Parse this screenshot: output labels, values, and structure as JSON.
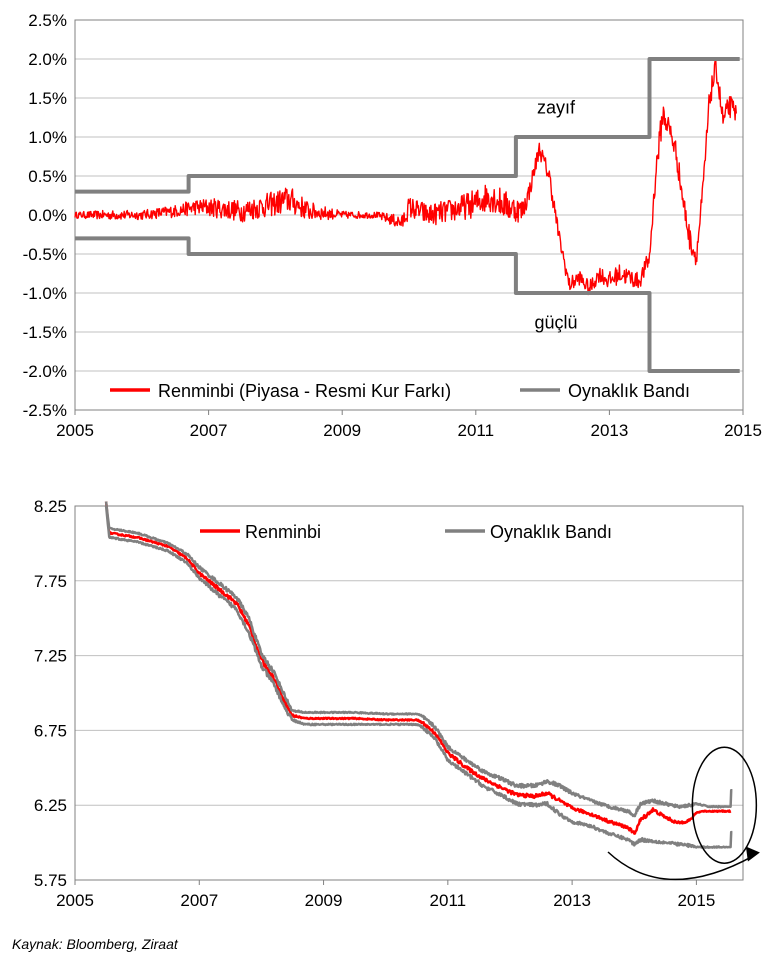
{
  "source": "Kaynak: Bloomberg, Ziraat",
  "chart_data": [
    {
      "type": "line",
      "title": "",
      "xlabel": "",
      "ylabel": "",
      "xlim": [
        2005,
        2015
      ],
      "ylim": [
        -2.5,
        2.5
      ],
      "x_ticks": [
        "2005",
        "2007",
        "2009",
        "2011",
        "2013",
        "2015"
      ],
      "y_ticks": [
        "2.5%",
        "2.0%",
        "1.5%",
        "1.0%",
        "0.5%",
        "0.0%",
        "-0.5%",
        "-1.0%",
        "-1.5%",
        "-2.0%",
        "-2.5%"
      ],
      "grid": true,
      "legend_position": "bottom",
      "annotations": [
        {
          "text": "zayıf",
          "x": 2012.2,
          "y": 1.2
        },
        {
          "text": "güçlü",
          "x": 2012.2,
          "y": -1.3
        }
      ],
      "series": [
        {
          "name": "Renminbi (Piyasa - Resmi Kur Farkı)",
          "color": "#ff0000",
          "style": "noisy",
          "x": [
            2005.0,
            2005.5,
            2006.0,
            2006.5,
            2006.8,
            2007.0,
            2007.5,
            2008.0,
            2008.2,
            2008.5,
            2009.0,
            2009.5,
            2009.9,
            2010.0,
            2010.3,
            2010.6,
            2011.0,
            2011.2,
            2011.5,
            2011.7,
            2011.8,
            2011.95,
            2012.1,
            2012.25,
            2012.4,
            2012.55,
            2012.7,
            2012.85,
            2013.0,
            2013.15,
            2013.3,
            2013.45,
            2013.6,
            2013.7,
            2013.8,
            2013.9,
            2014.0,
            2014.1,
            2014.2,
            2014.3,
            2014.4,
            2014.5,
            2014.6,
            2014.7,
            2014.8,
            2014.9
          ],
          "y": [
            0.0,
            0.0,
            0.0,
            0.05,
            0.1,
            0.1,
            0.05,
            0.15,
            0.2,
            0.05,
            0.0,
            0.0,
            -0.1,
            0.1,
            0.0,
            0.05,
            0.15,
            0.25,
            0.1,
            0.05,
            0.3,
            0.85,
            0.5,
            -0.3,
            -0.9,
            -0.8,
            -0.95,
            -0.75,
            -0.85,
            -0.75,
            -0.8,
            -0.85,
            -0.55,
            0.6,
            1.3,
            1.1,
            0.8,
            0.2,
            -0.3,
            -0.55,
            0.3,
            1.5,
            1.9,
            1.2,
            1.4,
            1.3
          ],
          "noise": [
            0.04,
            0.06,
            0.06,
            0.08,
            0.1,
            0.12,
            0.14,
            0.16,
            0.18,
            0.12,
            0.05,
            0.04,
            0.1,
            0.14,
            0.14,
            0.15,
            0.18,
            0.2,
            0.18,
            0.15,
            0.12,
            0.1,
            0.12,
            0.1,
            0.1,
            0.1,
            0.1,
            0.1,
            0.12,
            0.12,
            0.12,
            0.1,
            0.12,
            0.15,
            0.18,
            0.15,
            0.15,
            0.15,
            0.15,
            0.12,
            0.15,
            0.15,
            0.15,
            0.15,
            0.15,
            0.12
          ]
        },
        {
          "name": "Oynaklık Bandı",
          "color": "#808080",
          "style": "step",
          "x": [
            2005.0,
            2006.7,
            2006.7,
            2011.6,
            2011.6,
            2013.6,
            2013.6,
            2014.95
          ],
          "y": [
            0.3,
            0.3,
            0.5,
            0.5,
            1.0,
            1.0,
            2.0,
            2.0
          ]
        },
        {
          "name": "",
          "color": "#808080",
          "style": "step",
          "x": [
            2005.0,
            2006.7,
            2006.7,
            2011.6,
            2011.6,
            2013.6,
            2013.6,
            2014.95
          ],
          "y": [
            -0.3,
            -0.3,
            -0.5,
            -0.5,
            -1.0,
            -1.0,
            -2.0,
            -2.0
          ]
        }
      ]
    },
    {
      "type": "line",
      "title": "",
      "xlabel": "",
      "ylabel": "",
      "xlim": [
        2005,
        2015.75
      ],
      "ylim": [
        5.75,
        8.25
      ],
      "x_ticks": [
        "2005",
        "2007",
        "2009",
        "2011",
        "2013",
        "2015"
      ],
      "y_ticks": [
        "8.25",
        "7.75",
        "7.25",
        "6.75",
        "6.25",
        "5.75"
      ],
      "grid": true,
      "legend_position": "top",
      "annotations": [
        {
          "text": "circle-highlight",
          "x": 2015.45,
          "y": 6.25
        },
        {
          "text": "arrow",
          "x": 2015.7,
          "y": 5.9
        }
      ],
      "series": [
        {
          "name": "Renminbi",
          "color": "#ff0000",
          "style": "noisy",
          "x": [
            2005.5,
            2005.55,
            2006.0,
            2006.5,
            2006.8,
            2007.0,
            2007.3,
            2007.6,
            2007.8,
            2008.0,
            2008.2,
            2008.4,
            2008.5,
            2008.7,
            2009.0,
            2009.5,
            2010.0,
            2010.5,
            2010.6,
            2010.8,
            2011.0,
            2011.3,
            2011.6,
            2011.9,
            2012.1,
            2012.4,
            2012.6,
            2012.8,
            2013.0,
            2013.3,
            2013.6,
            2013.9,
            2014.0,
            2014.1,
            2014.3,
            2014.5,
            2014.7,
            2014.9,
            2015.0,
            2015.1,
            2015.2,
            2015.4,
            2015.55
          ],
          "y": [
            8.28,
            8.07,
            8.04,
            7.98,
            7.9,
            7.8,
            7.7,
            7.6,
            7.45,
            7.22,
            7.1,
            6.92,
            6.85,
            6.83,
            6.83,
            6.83,
            6.82,
            6.82,
            6.8,
            6.73,
            6.6,
            6.5,
            6.42,
            6.36,
            6.32,
            6.31,
            6.33,
            6.28,
            6.23,
            6.19,
            6.14,
            6.1,
            6.06,
            6.15,
            6.22,
            6.17,
            6.13,
            6.15,
            6.2,
            6.21,
            6.21,
            6.21,
            6.21
          ],
          "noise": [
            0.0,
            0.005,
            0.005,
            0.006,
            0.008,
            0.01,
            0.012,
            0.014,
            0.014,
            0.015,
            0.015,
            0.012,
            0.008,
            0.005,
            0.004,
            0.004,
            0.004,
            0.004,
            0.01,
            0.012,
            0.012,
            0.012,
            0.012,
            0.012,
            0.012,
            0.012,
            0.012,
            0.012,
            0.01,
            0.01,
            0.01,
            0.01,
            0.012,
            0.015,
            0.012,
            0.01,
            0.01,
            0.01,
            0.004,
            0.004,
            0.004,
            0.004,
            0.004
          ]
        },
        {
          "name": "Oynaklık Bandı",
          "color": "#808080",
          "style": "noisy",
          "x": [
            2005.5,
            2005.55,
            2006.0,
            2006.5,
            2006.8,
            2007.0,
            2007.3,
            2007.6,
            2007.8,
            2008.0,
            2008.2,
            2008.4,
            2008.5,
            2008.7,
            2009.0,
            2009.5,
            2010.0,
            2010.5,
            2010.6,
            2010.8,
            2011.0,
            2011.3,
            2011.6,
            2011.9,
            2012.1,
            2012.4,
            2012.6,
            2012.8,
            2013.0,
            2013.3,
            2013.6,
            2013.9,
            2014.0,
            2014.1,
            2014.3,
            2014.5,
            2014.7,
            2014.9,
            2015.0,
            2015.1,
            2015.2,
            2015.4,
            2015.55,
            2015.56,
            2015.58
          ],
          "y": [
            8.28,
            8.1,
            8.07,
            8.0,
            7.93,
            7.84,
            7.74,
            7.64,
            7.5,
            7.26,
            7.14,
            6.96,
            6.88,
            6.87,
            6.87,
            6.87,
            6.86,
            6.86,
            6.84,
            6.77,
            6.64,
            6.55,
            6.47,
            6.42,
            6.38,
            6.38,
            6.41,
            6.38,
            6.33,
            6.28,
            6.24,
            6.21,
            6.18,
            6.26,
            6.28,
            6.26,
            6.24,
            6.25,
            6.26,
            6.25,
            6.24,
            6.24,
            6.24,
            6.35,
            6.35
          ],
          "noise": [
            0.0,
            0.005,
            0.005,
            0.006,
            0.008,
            0.01,
            0.012,
            0.014,
            0.014,
            0.015,
            0.015,
            0.012,
            0.008,
            0.005,
            0.004,
            0.004,
            0.004,
            0.004,
            0.01,
            0.012,
            0.012,
            0.012,
            0.012,
            0.012,
            0.012,
            0.012,
            0.012,
            0.012,
            0.01,
            0.01,
            0.01,
            0.01,
            0.012,
            0.012,
            0.01,
            0.01,
            0.01,
            0.01,
            0.004,
            0.004,
            0.004,
            0.004,
            0.0,
            0.0,
            0.0
          ]
        },
        {
          "name": "",
          "color": "#808080",
          "style": "noisy",
          "x": [
            2005.5,
            2005.55,
            2006.0,
            2006.5,
            2006.8,
            2007.0,
            2007.3,
            2007.6,
            2007.8,
            2008.0,
            2008.2,
            2008.4,
            2008.5,
            2008.7,
            2009.0,
            2009.5,
            2010.0,
            2010.5,
            2010.6,
            2010.8,
            2011.0,
            2011.3,
            2011.6,
            2011.9,
            2012.1,
            2012.4,
            2012.6,
            2012.8,
            2013.0,
            2013.3,
            2013.6,
            2013.9,
            2014.0,
            2014.1,
            2014.3,
            2014.5,
            2014.7,
            2014.9,
            2015.0,
            2015.1,
            2015.2,
            2015.4,
            2015.55,
            2015.56,
            2015.58
          ],
          "y": [
            8.25,
            8.04,
            8.01,
            7.95,
            7.87,
            7.77,
            7.66,
            7.56,
            7.4,
            7.18,
            7.06,
            6.88,
            6.82,
            6.79,
            6.79,
            6.79,
            6.79,
            6.79,
            6.77,
            6.69,
            6.55,
            6.46,
            6.37,
            6.31,
            6.26,
            6.25,
            6.26,
            6.19,
            6.14,
            6.11,
            6.06,
            6.02,
            5.99,
            6.02,
            6.01,
            6.0,
            5.99,
            5.98,
            5.97,
            5.97,
            5.97,
            5.97,
            5.97,
            6.07,
            6.07
          ],
          "noise": [
            0.0,
            0.005,
            0.005,
            0.006,
            0.008,
            0.01,
            0.012,
            0.014,
            0.014,
            0.015,
            0.015,
            0.012,
            0.008,
            0.005,
            0.004,
            0.004,
            0.004,
            0.004,
            0.01,
            0.012,
            0.012,
            0.012,
            0.012,
            0.012,
            0.012,
            0.012,
            0.012,
            0.012,
            0.01,
            0.01,
            0.01,
            0.01,
            0.012,
            0.012,
            0.01,
            0.01,
            0.01,
            0.01,
            0.004,
            0.004,
            0.004,
            0.004,
            0.0,
            0.0,
            0.0
          ]
        }
      ]
    }
  ]
}
